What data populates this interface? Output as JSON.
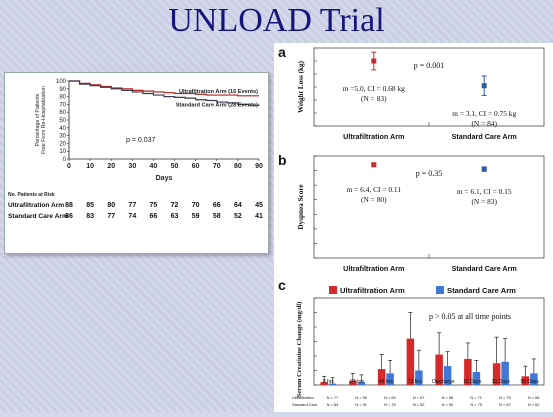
{
  "title": "UNLOAD Trial",
  "chart_data": [
    {
      "type": "line",
      "id": "km",
      "ylabel": "Percentage of Patients Free From Re-Hospitalization",
      "xlabel": "Days",
      "x_ticks": [
        0,
        10,
        20,
        30,
        40,
        50,
        60,
        70,
        80,
        90
      ],
      "y_ticks": [
        0,
        10,
        20,
        30,
        40,
        50,
        60,
        70,
        80,
        90,
        100
      ],
      "xlim": [
        0,
        90
      ],
      "ylim": [
        0,
        100
      ],
      "annotation": "p = 0.037",
      "series": [
        {
          "name": "Ultrafiltration Arm (16 Events)",
          "color": "#b52020",
          "x": [
            0,
            5,
            10,
            15,
            20,
            25,
            30,
            35,
            40,
            45,
            50,
            55,
            60,
            65,
            70,
            75,
            80,
            85,
            90
          ],
          "y": [
            100,
            97,
            95,
            93,
            91,
            90,
            88,
            87,
            86,
            85,
            84,
            84,
            83,
            82,
            82,
            82,
            81,
            81,
            81
          ]
        },
        {
          "name": "Standard Care Arm (28 Events)",
          "color": "#3a3a52",
          "x": [
            0,
            5,
            10,
            15,
            20,
            25,
            30,
            35,
            40,
            45,
            50,
            55,
            60,
            65,
            70,
            75,
            80,
            85,
            90
          ],
          "y": [
            100,
            96,
            94,
            92,
            90,
            88,
            86,
            84,
            82,
            80,
            79,
            78,
            76,
            75,
            73,
            72,
            70,
            69,
            68
          ]
        }
      ],
      "at_risk": {
        "header": "No. Patients at Risk",
        "rows": [
          {
            "label": "Ultrafiltration Arm",
            "values": [
              "88",
              "85",
              "80",
              "77",
              "75",
              "72",
              "70",
              "66",
              "64",
              "45"
            ]
          },
          {
            "label": "Standard Care Arm",
            "values": [
              "86",
              "83",
              "77",
              "74",
              "66",
              "63",
              "59",
              "58",
              "52",
              "41"
            ]
          }
        ]
      }
    },
    {
      "type": "scatter",
      "id": "a",
      "panel_label": "a",
      "ylabel": "Weight Loss (kg)",
      "y_ticks": [
        0,
        1,
        2,
        3,
        4,
        5,
        6
      ],
      "ylim": [
        0,
        6
      ],
      "categories": [
        "Ultrafiltration Arm",
        "Standard Care Arm"
      ],
      "values": [
        5.0,
        3.1
      ],
      "errors": [
        0.68,
        0.75
      ],
      "colors": [
        "#cc2b2b",
        "#2b5d9c"
      ],
      "annotations": [
        "m =5.0, CI = 0.68 kg",
        "(N = 83)",
        "m = 3.1, CI = 0.75 kg",
        "(N = 84)"
      ],
      "p_value": "p = 0.001"
    },
    {
      "type": "scatter",
      "id": "b",
      "panel_label": "b",
      "ylabel": "Dyspnea Score",
      "y_ticks": [
        0,
        1,
        2,
        3,
        4,
        5,
        6,
        7
      ],
      "ylim": [
        0,
        7
      ],
      "categories": [
        "Ultrafiltration Arm",
        "Standard Care Arm"
      ],
      "values": [
        6.4,
        6.1
      ],
      "errors": [
        0.11,
        0.15
      ],
      "colors": [
        "#cc2b2b",
        "#2b5d9c"
      ],
      "annotations": [
        "m = 6.4, CI = 0.11",
        "(N = 80)",
        "m = 6.1, CI = 0.15",
        "(N = 83)"
      ],
      "p_value": "p = 0.35"
    },
    {
      "type": "bar",
      "id": "c",
      "panel_label": "c",
      "ylabel": "Serum Creatinine Change (mg/dl)",
      "y_ticks": [
        "0",
        "0.1",
        "0.2",
        "0.3",
        "0.4",
        "0.5",
        "0.6"
      ],
      "ylim": [
        0,
        0.6
      ],
      "categories": [
        "8 hrs",
        "24 hrs",
        "48 hrs",
        "72 hrs",
        "Discharge",
        "10 Days",
        "30 Days",
        "90 Days"
      ],
      "series": [
        {
          "name": "Ultrafiltration Arm",
          "color": "#d42a2a",
          "values": [
            0.02,
            0.03,
            0.11,
            0.32,
            0.21,
            0.18,
            0.15,
            0.06
          ],
          "errors": [
            0.04,
            0.05,
            0.1,
            0.18,
            0.15,
            0.11,
            0.18,
            0.07
          ]
        },
        {
          "name": "Standard Care Arm",
          "color": "#3f78d6",
          "values": [
            0.01,
            0.02,
            0.08,
            0.1,
            0.13,
            0.09,
            0.16,
            0.08
          ],
          "errors": [
            0.04,
            0.05,
            0.09,
            0.14,
            0.1,
            0.08,
            0.16,
            0.1
          ]
        }
      ],
      "annotation": "p > 0.05 at all time points",
      "n_rows": [
        {
          "label": "Ultrafiltration",
          "values": [
            "N = 77",
            "N = 90",
            "N = 69",
            "N = 67",
            "N = 86",
            "N = 71",
            "N = 75",
            "N = 66"
          ]
        },
        {
          "label": "Standard Care",
          "values": [
            "N = 84",
            "N = 91",
            "N = 75",
            "N = 52",
            "N = 90",
            "N = 75",
            "N = 67",
            "N = 62"
          ]
        }
      ]
    }
  ]
}
